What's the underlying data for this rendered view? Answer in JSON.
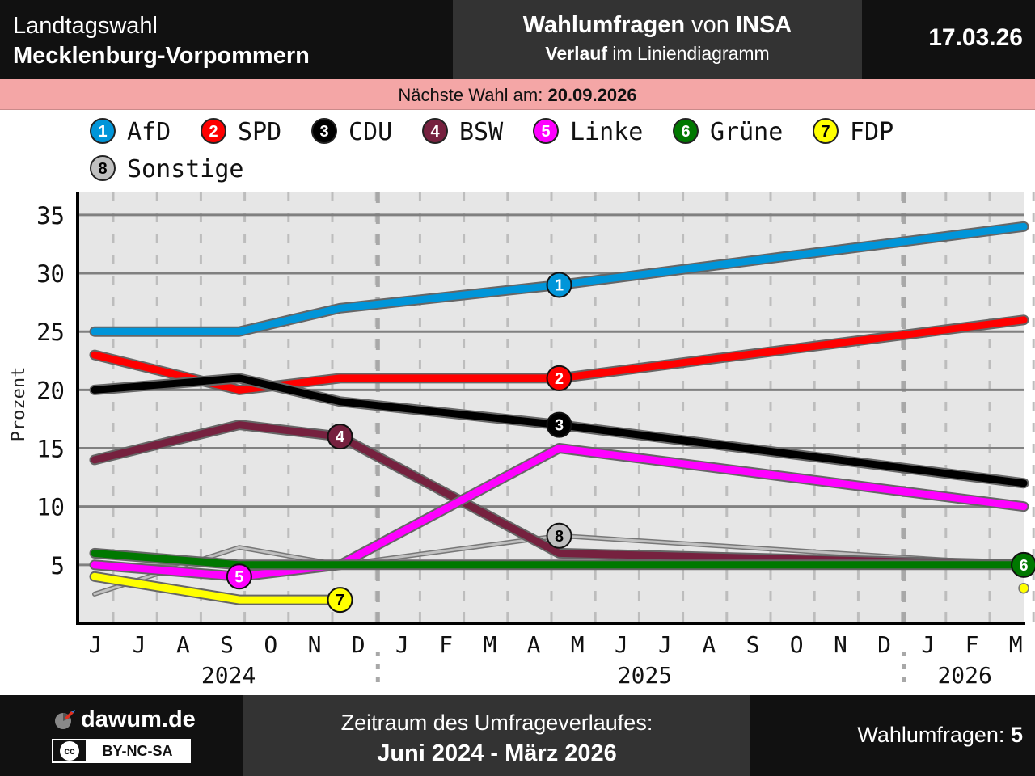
{
  "header": {
    "title_line1": "Landtagswahl",
    "title_line2": "Mecklenburg-Vorpommern",
    "center_bold1": "Wahlumfragen",
    "center_plain1": "von",
    "center_bold2": "INSA",
    "center_bold3": "Verlauf",
    "center_plain2": "im Liniendiagramm",
    "date": "17.03.26"
  },
  "banner": {
    "label": "Nächste Wahl am:",
    "date": "20.09.2026"
  },
  "footer": {
    "site": "dawum.de",
    "license": "BY-NC-SA",
    "license_icon": "cc",
    "period_label": "Zeitraum des Umfrageverlaufes:",
    "period": "Juni 2024 - März 2026",
    "count_label": "Wahlumfragen:",
    "count": "5"
  },
  "chart_data": {
    "type": "line",
    "title": "Wahlumfragen von INSA – Verlauf im Liniendiagramm",
    "xlabel": "",
    "ylabel": "Prozent",
    "ylim": [
      0,
      37
    ],
    "yticks": [
      5,
      10,
      15,
      20,
      25,
      30,
      35
    ],
    "grid": true,
    "legend_position": "top",
    "month_labels": [
      "J",
      "J",
      "A",
      "S",
      "O",
      "N",
      "D",
      "J",
      "F",
      "M",
      "A",
      "M",
      "J",
      "J",
      "A",
      "S",
      "O",
      "N",
      "D",
      "J",
      "F",
      "M"
    ],
    "year_labels": [
      {
        "label": "2024",
        "month_index": 3
      },
      {
        "label": "2025",
        "month_index": 12.5
      },
      {
        "label": "2026",
        "month_index": 19.8
      }
    ],
    "year_separators": [
      6.5,
      18.5
    ],
    "poll_dates": [
      3.3,
      5.6,
      10.6,
      21.2
    ],
    "series": [
      {
        "id": 1,
        "name": "AfD",
        "color": "#0095d9",
        "marker_at": 10.6,
        "points": [
          [
            0,
            25
          ],
          [
            3.3,
            25
          ],
          [
            5.6,
            27
          ],
          [
            10.6,
            29
          ],
          [
            21.2,
            34
          ]
        ]
      },
      {
        "id": 2,
        "name": "SPD",
        "color": "#ff0000",
        "marker_at": 10.6,
        "points": [
          [
            0,
            23
          ],
          [
            3.3,
            20
          ],
          [
            5.6,
            21
          ],
          [
            10.6,
            21
          ],
          [
            21.2,
            26
          ]
        ]
      },
      {
        "id": 3,
        "name": "CDU",
        "color": "#000000",
        "marker_at": 10.6,
        "points": [
          [
            0,
            20
          ],
          [
            3.3,
            21
          ],
          [
            5.6,
            19
          ],
          [
            10.6,
            17
          ],
          [
            21.2,
            12
          ]
        ]
      },
      {
        "id": 4,
        "name": "BSW",
        "color": "#76213f",
        "marker_at": 5.6,
        "points": [
          [
            0,
            14
          ],
          [
            3.3,
            17
          ],
          [
            5.6,
            16
          ],
          [
            10.6,
            6
          ],
          [
            21.2,
            5
          ]
        ]
      },
      {
        "id": 5,
        "name": "Linke",
        "color": "#ff00ff",
        "marker_at": 3.3,
        "points": [
          [
            0,
            5
          ],
          [
            3.3,
            4
          ],
          [
            5.6,
            5
          ],
          [
            10.6,
            15
          ],
          [
            21.2,
            10
          ]
        ]
      },
      {
        "id": 6,
        "name": "Grüne",
        "color": "#007800",
        "marker_at": 21.2,
        "points": [
          [
            0,
            6
          ],
          [
            3.3,
            5
          ],
          [
            5.6,
            5
          ],
          [
            10.6,
            5
          ],
          [
            21.2,
            5
          ]
        ]
      },
      {
        "id": 7,
        "name": "FDP",
        "color": "#ffff00",
        "marker_at": 5.6,
        "points": [
          [
            0,
            4
          ],
          [
            3.3,
            2
          ],
          [
            5.6,
            2
          ]
        ],
        "extra_points": [
          [
            21.2,
            3
          ]
        ]
      },
      {
        "id": 8,
        "name": "Sonstige",
        "color": "#c0c0c0",
        "marker_at": 10.6,
        "points": [
          [
            0,
            2.5
          ],
          [
            3.3,
            6.5
          ],
          [
            5.6,
            5
          ],
          [
            10.6,
            7.5
          ],
          [
            21.2,
            5
          ]
        ]
      }
    ]
  }
}
